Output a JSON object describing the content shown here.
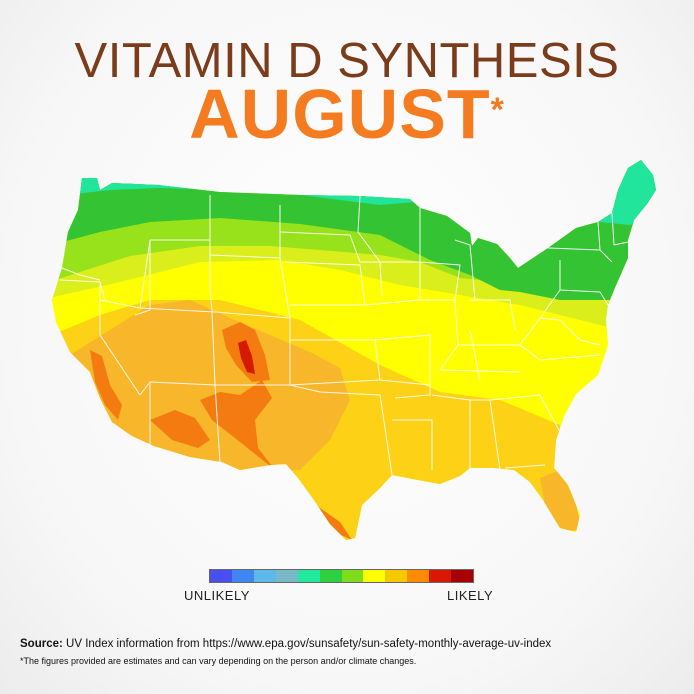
{
  "title": "VITAMIN D SYNTHESIS",
  "month": "AUGUST",
  "month_mark": "*",
  "legend": {
    "low_label": "UNLIKELY",
    "high_label": "LIKELY",
    "colors": [
      "#4a4ff0",
      "#3f86f0",
      "#5fb8ea",
      "#7ab7c9",
      "#23e8a0",
      "#2fd040",
      "#7fdc1a",
      "#ffff00",
      "#f5c800",
      "#ff8c00",
      "#d81800",
      "#a80000"
    ]
  },
  "zone_colors": {
    "lightgreen": "#21e59a",
    "green": "#34c332",
    "limegreen": "#97e21b",
    "yellowgreen": "#d9ee1b",
    "yellow": "#ffff00",
    "gold": "#fcd116",
    "amber": "#f8b62a",
    "orange": "#f47b10",
    "red": "#d61a00"
  },
  "source_label": "Source:",
  "source_text": "UV Index information from https://www.epa.gov/sunsafety/sun-safety-monthly-average-uv-index",
  "note": "*The figures provided are estimates and can vary depending on the person and/or climate changes."
}
